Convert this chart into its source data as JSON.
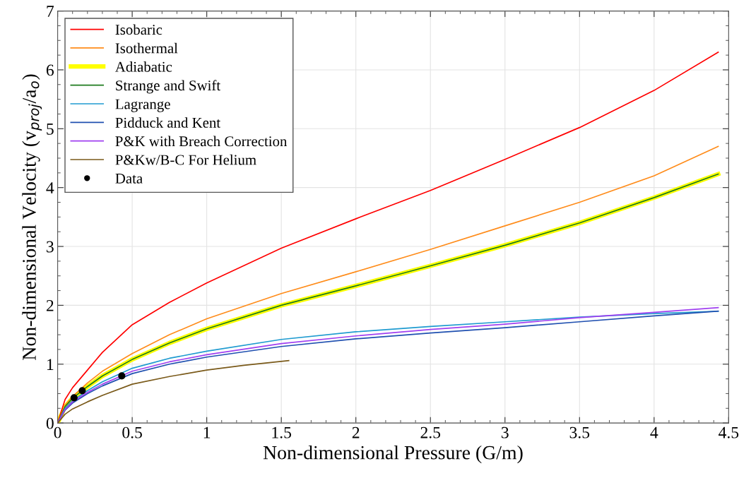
{
  "chart_data": {
    "type": "line",
    "xlabel": "Non-dimensional Pressure (G/m)",
    "ylabel": "Non-dimensional Velocity (v$_{proj}$/a$_{o}$)",
    "x": [
      0,
      0.05,
      0.1,
      0.2,
      0.3,
      0.5,
      0.75,
      1,
      1.5,
      2,
      2.5,
      3,
      3.5,
      4,
      4.43
    ],
    "xlim": [
      0,
      4.5
    ],
    "xticks": [
      0,
      0.5,
      1,
      1.5,
      2,
      2.5,
      3,
      3.5,
      4,
      4.5
    ],
    "ylim": [
      0,
      7
    ],
    "yticks": [
      0,
      1,
      2,
      3,
      4,
      5,
      6,
      7
    ],
    "grid": true,
    "legend": "top left",
    "series": [
      {
        "name": "Isobaric",
        "color": "#ff0000",
        "values": [
          0,
          0.4,
          0.6,
          0.9,
          1.2,
          1.67,
          2.05,
          2.38,
          2.97,
          3.47,
          3.95,
          4.48,
          5.02,
          5.65,
          6.3
        ]
      },
      {
        "name": "Isothermal",
        "color": "#ff8c1a",
        "values": [
          0,
          0.3,
          0.45,
          0.68,
          0.88,
          1.18,
          1.5,
          1.77,
          2.2,
          2.57,
          2.95,
          3.35,
          3.75,
          4.2,
          4.7
        ]
      },
      {
        "name": "Adiabatic",
        "color": "#ffff00",
        "values": [
          0,
          0.28,
          0.42,
          0.62,
          0.8,
          1.08,
          1.36,
          1.6,
          2.0,
          2.33,
          2.67,
          3.02,
          3.4,
          3.83,
          4.23
        ]
      },
      {
        "name": "Strange and Swift",
        "color": "#1e7b1e",
        "values": [
          0,
          0.28,
          0.42,
          0.62,
          0.8,
          1.08,
          1.36,
          1.6,
          2.0,
          2.33,
          2.67,
          3.02,
          3.4,
          3.83,
          4.23
        ]
      },
      {
        "name": "Lagrange",
        "color": "#1f9bd0",
        "values": [
          0,
          0.25,
          0.38,
          0.55,
          0.7,
          0.93,
          1.1,
          1.22,
          1.42,
          1.55,
          1.64,
          1.72,
          1.8,
          1.86,
          1.9
        ]
      },
      {
        "name": "Pidduck and Kent",
        "color": "#2050b0",
        "values": [
          0,
          0.22,
          0.34,
          0.5,
          0.63,
          0.84,
          1.0,
          1.12,
          1.3,
          1.43,
          1.53,
          1.62,
          1.72,
          1.82,
          1.9
        ]
      },
      {
        "name": "P&K with Breach Correction",
        "color": "#a040f0",
        "values": [
          0,
          0.23,
          0.36,
          0.52,
          0.66,
          0.88,
          1.04,
          1.16,
          1.35,
          1.48,
          1.59,
          1.68,
          1.79,
          1.88,
          1.96
        ]
      },
      {
        "name": "P&Kw/B-C For Helium",
        "color": "#7a5a1a",
        "x": [
          0,
          0.05,
          0.1,
          0.2,
          0.3,
          0.5,
          0.75,
          1,
          1.25,
          1.55
        ],
        "values": [
          0,
          0.15,
          0.24,
          0.36,
          0.47,
          0.66,
          0.79,
          0.9,
          0.98,
          1.06
        ]
      },
      {
        "name": "Data",
        "type": "scatter",
        "marker": "circle",
        "color": "#000000",
        "x": [
          0.11,
          0.165,
          0.43
        ],
        "values": [
          0.43,
          0.55,
          0.8
        ]
      }
    ]
  }
}
